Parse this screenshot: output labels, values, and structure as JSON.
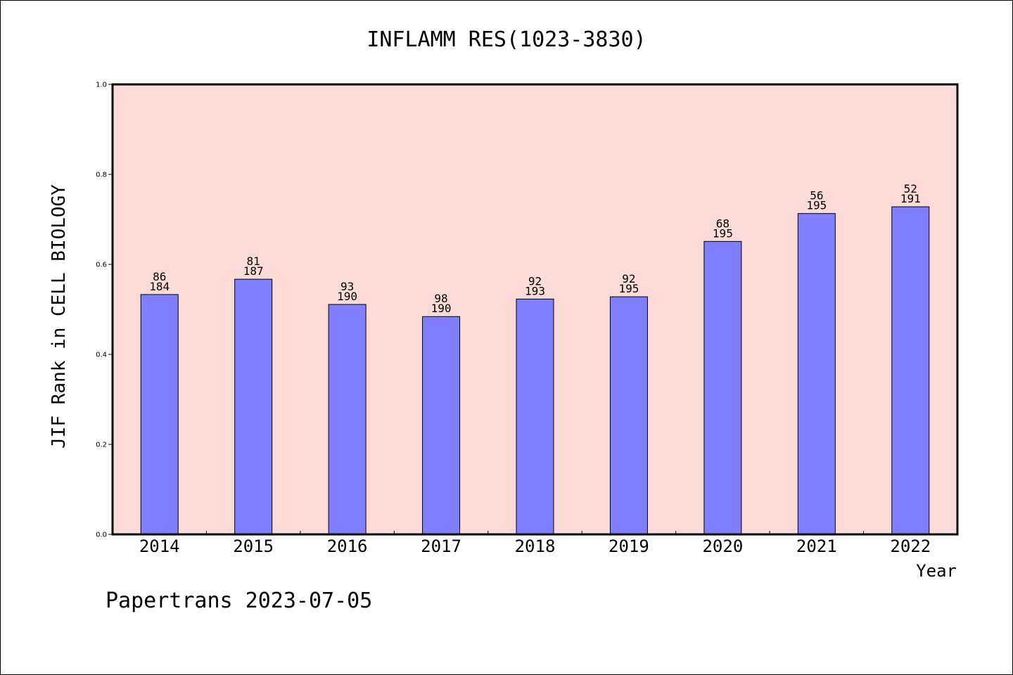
{
  "chart_data": {
    "type": "bar",
    "title": "INFLAMM RES(1023-3830)",
    "xlabel": "Year",
    "ylabel": "JIF Rank in CELL BIOLOGY",
    "ylim": [
      0.0,
      1.0
    ],
    "yticks": [
      "0.0",
      "0.2",
      "0.4",
      "0.6",
      "0.8",
      "1.0"
    ],
    "categories": [
      "2014",
      "2015",
      "2016",
      "2017",
      "2018",
      "2019",
      "2020",
      "2021",
      "2022"
    ],
    "values": [
      0.533,
      0.567,
      0.511,
      0.484,
      0.523,
      0.528,
      0.651,
      0.713,
      0.728
    ],
    "rank": [
      "86",
      "81",
      "93",
      "98",
      "92",
      "92",
      "68",
      "56",
      "52"
    ],
    "total": [
      "184",
      "187",
      "190",
      "190",
      "193",
      "195",
      "195",
      "195",
      "191"
    ],
    "grid": false,
    "colors": {
      "plot_background": "#fddbd8",
      "bar_fill": "#8080ff",
      "bar_edge": "#000000"
    }
  },
  "footer": "Papertrans 2023-07-05"
}
